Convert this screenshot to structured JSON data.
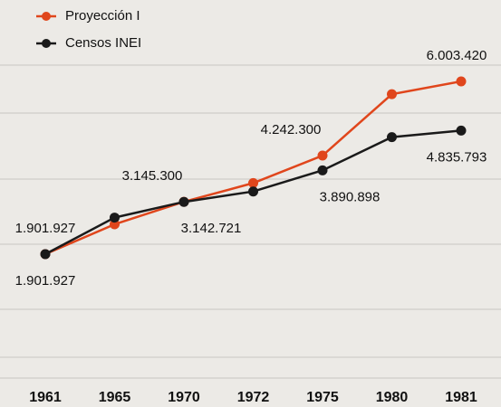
{
  "chart_data": {
    "type": "line",
    "categories": [
      "1961",
      "1965",
      "1970",
      "1972",
      "1975",
      "1980",
      "1981"
    ],
    "series": [
      {
        "name": "Proyección I",
        "color": "#e0461c",
        "values": [
          1901927,
          2610000,
          3145300,
          3590000,
          4242300,
          5700000,
          6003420
        ],
        "value_labels": [
          "1.901.927",
          null,
          "3.145.300",
          null,
          "4.242.300",
          null,
          "6.003.420"
        ]
      },
      {
        "name": "Censos INEI",
        "color": "#1a1a1a",
        "values": [
          1901927,
          2770000,
          3142721,
          3390000,
          3890898,
          4680000,
          4835793
        ],
        "value_labels": [
          "1.901.927",
          null,
          "3.142.721",
          null,
          "3.890.898",
          null,
          "4.835.793"
        ]
      }
    ]
  }
}
